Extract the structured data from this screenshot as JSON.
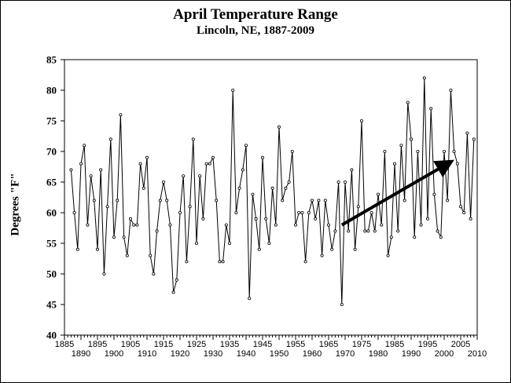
{
  "chart_data": {
    "type": "line",
    "title": "April Temperature Range",
    "subtitle": "Lincoln, NE, 1887-2009",
    "ylabel": "Degrees \"F\"",
    "xlabel": "",
    "ylim": [
      40,
      85
    ],
    "xlim": [
      1885,
      2010
    ],
    "yticks": [
      40,
      45,
      50,
      55,
      60,
      65,
      70,
      75,
      80,
      85
    ],
    "xticks_top": [
      1885,
      1895,
      1905,
      1915,
      1925,
      1935,
      1945,
      1955,
      1965,
      1975,
      1985,
      1995,
      2005
    ],
    "xticks_bottom": [
      1890,
      1900,
      1910,
      1920,
      1930,
      1940,
      1950,
      1960,
      1970,
      1980,
      1990,
      2000,
      2010
    ],
    "grid": false,
    "legend": "none",
    "line_color": "#000000",
    "trend_arrow": {
      "from": [
        1969,
        58
      ],
      "to": [
        2001,
        68
      ],
      "color": "#000000"
    },
    "x": [
      1887,
      1888,
      1889,
      1890,
      1891,
      1892,
      1893,
      1894,
      1895,
      1896,
      1897,
      1898,
      1899,
      1900,
      1901,
      1902,
      1903,
      1904,
      1905,
      1906,
      1907,
      1908,
      1909,
      1910,
      1911,
      1912,
      1913,
      1914,
      1915,
      1916,
      1917,
      1918,
      1919,
      1920,
      1921,
      1922,
      1923,
      1924,
      1925,
      1926,
      1927,
      1928,
      1929,
      1930,
      1931,
      1932,
      1933,
      1934,
      1935,
      1936,
      1937,
      1938,
      1939,
      1940,
      1941,
      1942,
      1943,
      1944,
      1945,
      1946,
      1947,
      1948,
      1949,
      1950,
      1951,
      1952,
      1953,
      1954,
      1955,
      1956,
      1957,
      1958,
      1959,
      1960,
      1961,
      1962,
      1963,
      1964,
      1965,
      1966,
      1967,
      1968,
      1969,
      1970,
      1971,
      1972,
      1973,
      1974,
      1975,
      1976,
      1977,
      1978,
      1979,
      1980,
      1981,
      1982,
      1983,
      1984,
      1985,
      1986,
      1987,
      1988,
      1989,
      1990,
      1991,
      1992,
      1993,
      1994,
      1995,
      1996,
      1997,
      1998,
      1999,
      2000,
      2001,
      2002,
      2003,
      2004,
      2005,
      2006,
      2007,
      2008,
      2009
    ],
    "values": [
      67,
      60,
      54,
      68,
      71,
      58,
      66,
      62,
      54,
      67,
      50,
      61,
      72,
      56,
      62,
      76,
      56,
      53,
      59,
      58,
      58,
      68,
      64,
      69,
      53,
      50,
      57,
      62,
      65,
      62,
      58,
      47,
      49,
      60,
      66,
      52,
      61,
      72,
      55,
      66,
      59,
      68,
      68,
      69,
      62,
      52,
      52,
      58,
      55,
      80,
      60,
      64,
      67,
      71,
      46,
      63,
      59,
      54,
      69,
      59,
      55,
      64,
      58,
      74,
      62,
      64,
      65,
      70,
      58,
      60,
      60,
      52,
      60,
      62,
      59,
      62,
      53,
      62,
      58,
      54,
      57,
      65,
      45,
      65,
      57,
      67,
      54,
      61,
      75,
      57,
      57,
      60,
      57,
      63,
      58,
      70,
      53,
      56,
      68,
      57,
      71,
      62,
      78,
      72,
      56,
      70,
      58,
      82,
      59,
      77,
      63,
      57,
      56,
      70,
      62,
      80,
      70,
      68,
      61,
      60,
      73,
      59,
      72
    ]
  }
}
